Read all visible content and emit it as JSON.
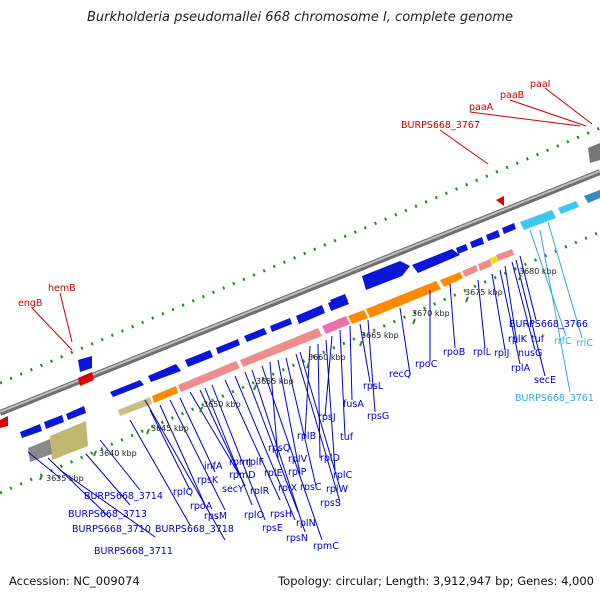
{
  "title": "Burkholderia pseudomallei 668 chromosome I, complete genome",
  "footer": {
    "accession": "Accession: NC_009074",
    "summary": "Topology: circular; Length: 3,912,947 bp; Genes: 4,000"
  },
  "colors": {
    "backbone": "#8a8a8a",
    "gene_blue": "#0a16d8",
    "ribosomal_pink": "#f08c8c",
    "orange": "#ff8a00",
    "rrna_cyan": "#3cc8f0",
    "label_red": "#cc0000",
    "label_blue": "#0000cc",
    "label_cyan": "#33aadd",
    "tick_green": "#2a8a2a"
  },
  "kbp_ticks": [
    {
      "kbp": "3635 kbp"
    },
    {
      "kbp": "3640 kbp"
    },
    {
      "kbp": "3645 kbp"
    },
    {
      "kbp": "3650 kbp"
    },
    {
      "kbp": "3655 kbp"
    },
    {
      "kbp": "3660 kbp"
    },
    {
      "kbp": "3665 kbp"
    },
    {
      "kbp": "3670 kbp"
    },
    {
      "kbp": "3675 kbp"
    },
    {
      "kbp": "3680 kbp"
    }
  ],
  "gene_labels_red": [
    "engB",
    "hemB",
    "BURPS668_3767",
    "paaA",
    "paaB",
    "paaI"
  ],
  "gene_labels_blue": [
    "BURPS668_3714",
    "BURPS668_3713",
    "BURPS668_3710",
    "BURPS668_3711",
    "BURPS668_3718",
    "rplQ",
    "rpoA",
    "rpsM",
    "rpsK",
    "secY",
    "infA",
    "rpmD",
    "rplO",
    "rpsE",
    "rpmJ",
    "rplR",
    "rplF",
    "rplE",
    "rplX",
    "rpsH",
    "rplN",
    "rpsN",
    "rpmC",
    "rpsQ",
    "rplP",
    "rpsC",
    "rplV",
    "rplB",
    "rpsS",
    "rplW",
    "rplD",
    "rplC",
    "rpsJ",
    "tuf",
    "fusA",
    "rpsG",
    "rpsL",
    "recQ",
    "rpoC",
    "rpoB",
    "rplL",
    "rplJ",
    "rplA",
    "rplK",
    "nusG",
    "secE",
    "BURPS668_3766"
  ],
  "gene_labels_cyan": [
    "rrfC",
    "rrlC",
    "BURPS668_3761"
  ]
}
